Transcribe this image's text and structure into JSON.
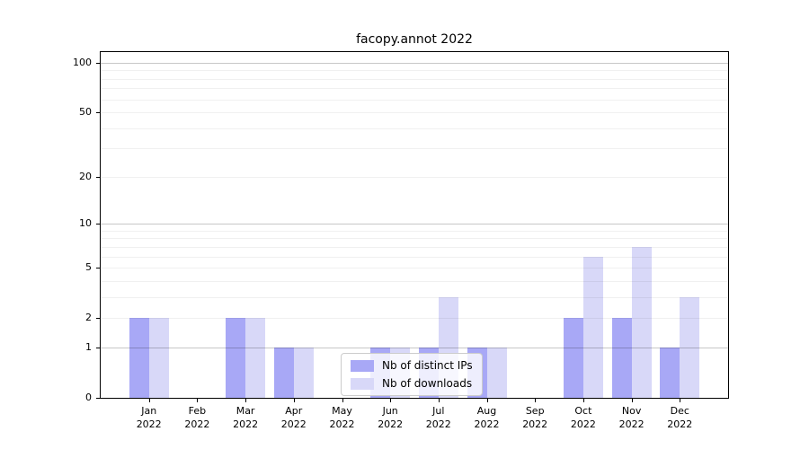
{
  "chart_data": {
    "type": "bar",
    "title": "facopy.annot 2022",
    "yscale": "log1p",
    "ylim": [
      0,
      116
    ],
    "grid": "on",
    "legend_position": "inside-bottom-center-left",
    "categories": [
      {
        "month": "Jan",
        "year": "2022"
      },
      {
        "month": "Feb",
        "year": "2022"
      },
      {
        "month": "Mar",
        "year": "2022"
      },
      {
        "month": "Apr",
        "year": "2022"
      },
      {
        "month": "May",
        "year": "2022"
      },
      {
        "month": "Jun",
        "year": "2022"
      },
      {
        "month": "Jul",
        "year": "2022"
      },
      {
        "month": "Aug",
        "year": "2022"
      },
      {
        "month": "Sep",
        "year": "2022"
      },
      {
        "month": "Oct",
        "year": "2022"
      },
      {
        "month": "Nov",
        "year": "2022"
      },
      {
        "month": "Dec",
        "year": "2022"
      }
    ],
    "series": [
      {
        "name": "Nb of distinct IPs",
        "color": "#a8a8f6",
        "values": [
          2,
          0,
          2,
          1,
          0,
          1,
          1,
          1,
          0,
          2,
          2,
          1
        ]
      },
      {
        "name": "Nb of downloads",
        "color": "#d8d8f8",
        "values": [
          2,
          0,
          2,
          1,
          0,
          1,
          3,
          1,
          0,
          6,
          7,
          3
        ]
      }
    ],
    "yticks": [
      {
        "value": 0,
        "label": "0"
      },
      {
        "value": 1,
        "label": "1"
      },
      {
        "value": 2,
        "label": "2"
      },
      {
        "value": 5,
        "label": "5"
      },
      {
        "value": 10,
        "label": "10"
      },
      {
        "value": 20,
        "label": "20"
      },
      {
        "value": 50,
        "label": "50"
      },
      {
        "value": 100,
        "label": "100"
      }
    ],
    "gridlines": {
      "major": [
        1,
        10,
        100
      ],
      "minor": [
        2,
        3,
        4,
        5,
        6,
        7,
        8,
        9,
        20,
        30,
        40,
        50,
        60,
        70,
        80,
        90
      ]
    },
    "colors": {
      "axis": "#000000",
      "major_grid": "rgba(0,0,0,0.22)",
      "minor_grid": "rgba(0,0,0,0.06)",
      "legend_border": "#cccccc",
      "legend_bg": "rgba(255,255,255,0.8)"
    }
  }
}
